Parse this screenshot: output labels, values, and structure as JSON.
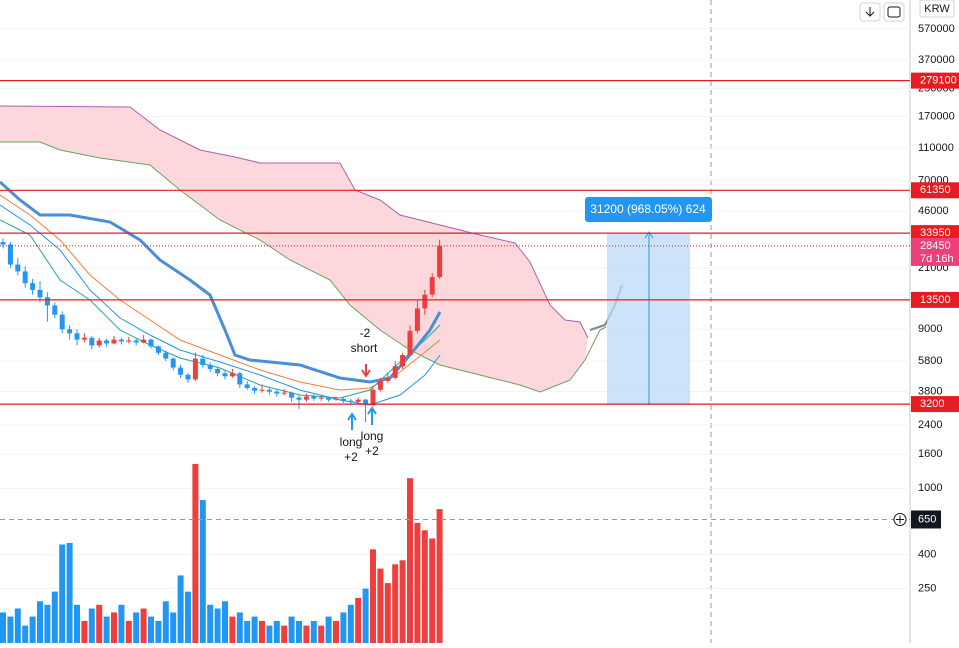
{
  "toolbar": {
    "currency": "KRW"
  },
  "price_axis": {
    "scale": "log",
    "ylim": [
      118,
      850000
    ],
    "ticks": [
      570000,
      370000,
      250000,
      170000,
      110000,
      70000,
      46000,
      21000,
      9000,
      5800,
      3800,
      2400,
      1600,
      1000,
      400,
      250
    ]
  },
  "levels": [
    279100,
    61350,
    33950,
    13500,
    3200
  ],
  "last_price": {
    "value": 28450,
    "countdown": "7d 16h"
  },
  "crosshair": {
    "value": 650
  },
  "measure": {
    "label": "31200 (968.05%) 624"
  },
  "annotations": [
    "-2",
    "short",
    "long",
    "+2",
    "long",
    "+2"
  ],
  "up_color": "#ef3e3e",
  "down_color": "#2196f3",
  "candles": [
    [
      30000,
      31500,
      27500,
      29000
    ],
    [
      29000,
      30000,
      21000,
      22000
    ],
    [
      22000,
      24000,
      19000,
      20000
    ],
    [
      20000,
      21500,
      16000,
      17000
    ],
    [
      17000,
      18000,
      14500,
      15500
    ],
    [
      15500,
      17500,
      13000,
      14000
    ],
    [
      14000,
      15000,
      10000,
      12500
    ],
    [
      12500,
      13000,
      10500,
      11000
    ],
    [
      11000,
      11500,
      8500,
      9000
    ],
    [
      9000,
      9500,
      7800,
      8500
    ],
    [
      8500,
      9000,
      7200,
      7800
    ],
    [
      7800,
      8500,
      7500,
      8000
    ],
    [
      8000,
      8200,
      6800,
      7200
    ],
    [
      7200,
      8000,
      7000,
      7700
    ],
    [
      7700,
      7900,
      7100,
      7400
    ],
    [
      7400,
      8200,
      7300,
      7800
    ],
    [
      7800,
      8000,
      7300,
      7600
    ],
    [
      7600,
      8100,
      7400,
      7700
    ],
    [
      7700,
      7900,
      7200,
      7500
    ],
    [
      7500,
      8300,
      7400,
      7800
    ],
    [
      7800,
      7900,
      6900,
      7100
    ],
    [
      7100,
      7200,
      6300,
      6500
    ],
    [
      6500,
      6700,
      5800,
      6000
    ],
    [
      6000,
      6100,
      5100,
      5300
    ],
    [
      5300,
      5500,
      4600,
      4800
    ],
    [
      4800,
      4900,
      4300,
      4500
    ],
    [
      4500,
      6500,
      4400,
      6000
    ],
    [
      6000,
      6300,
      5300,
      5500
    ],
    [
      5500,
      5700,
      5000,
      5200
    ],
    [
      5200,
      5400,
      4700,
      4900
    ],
    [
      4900,
      5100,
      4500,
      4700
    ],
    [
      4700,
      5200,
      4600,
      4900
    ],
    [
      4900,
      5000,
      4000,
      4200
    ],
    [
      4200,
      4400,
      3900,
      4000
    ],
    [
      4000,
      4100,
      3700,
      3850
    ],
    [
      3850,
      4200,
      3750,
      3900
    ],
    [
      3900,
      4000,
      3650,
      3800
    ],
    [
      3800,
      3900,
      3550,
      3700
    ],
    [
      3700,
      3950,
      3600,
      3750
    ],
    [
      3750,
      3800,
      3300,
      3500
    ],
    [
      3500,
      3600,
      3000,
      3400
    ],
    [
      3400,
      3700,
      3300,
      3550
    ],
    [
      3550,
      3650,
      3350,
      3450
    ],
    [
      3450,
      3600,
      3350,
      3500
    ],
    [
      3500,
      3550,
      3300,
      3400
    ],
    [
      3400,
      3550,
      3350,
      3450
    ],
    [
      3450,
      3500,
      3250,
      3350
    ],
    [
      3350,
      3450,
      3150,
      3300
    ],
    [
      3300,
      3500,
      3200,
      3400
    ],
    [
      3400,
      3450,
      2500,
      3150
    ],
    [
      3150,
      4000,
      3100,
      3900
    ],
    [
      3900,
      4600,
      3800,
      4400
    ],
    [
      4400,
      4900,
      4300,
      4600
    ],
    [
      4600,
      5800,
      4500,
      5400
    ],
    [
      5400,
      6500,
      5200,
      6300
    ],
    [
      6300,
      9500,
      6200,
      8800
    ],
    [
      8800,
      13500,
      8500,
      12000
    ],
    [
      12000,
      15500,
      11000,
      14500
    ],
    [
      14500,
      19500,
      14000,
      18500
    ],
    [
      18500,
      31000,
      18000,
      28450
    ]
  ],
  "volumes": [
    180,
    170,
    190,
    150,
    170,
    210,
    200,
    240,
    460,
    470,
    200,
    160,
    190,
    200,
    170,
    180,
    200,
    160,
    180,
    190,
    170,
    160,
    210,
    180,
    300,
    240,
    1400,
    850,
    200,
    190,
    210,
    170,
    180,
    160,
    170,
    160,
    150,
    160,
    150,
    170,
    160,
    150,
    160,
    150,
    170,
    160,
    180,
    200,
    220,
    250,
    430,
    330,
    270,
    350,
    370,
    1150,
    620,
    560,
    500,
    750
  ]
}
